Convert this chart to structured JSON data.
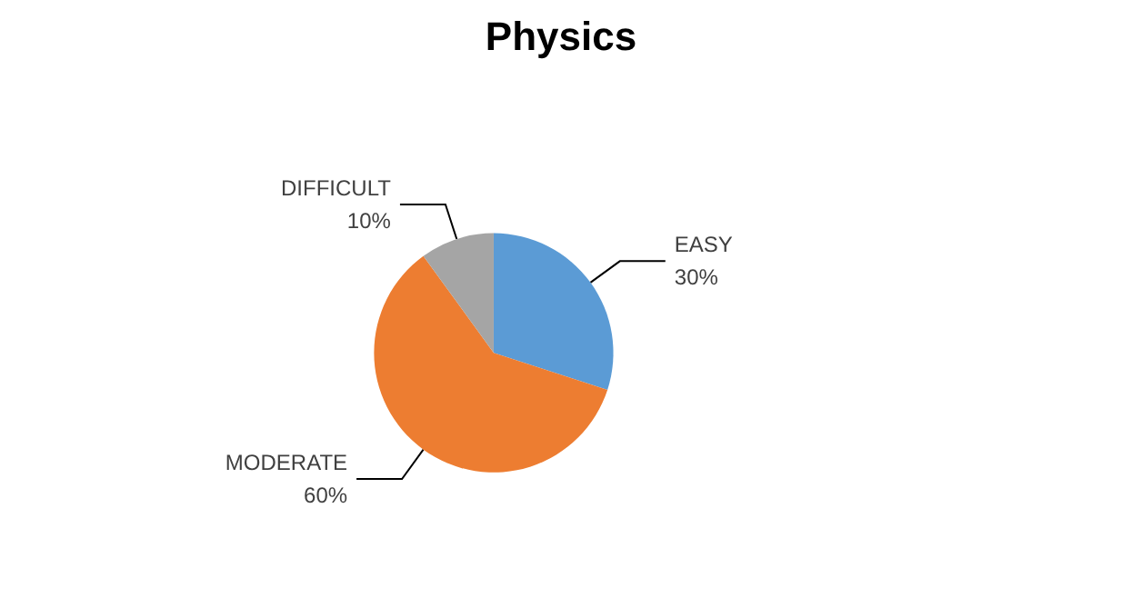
{
  "chart_data": {
    "type": "pie",
    "title": "Physics",
    "categories": [
      "EASY",
      "MODERATE",
      "DIFFICULT"
    ],
    "values": [
      30,
      60,
      10
    ],
    "value_labels": [
      "30%",
      "60%",
      "10%"
    ],
    "colors": [
      "#5b9bd5",
      "#ed7d31",
      "#a5a5a5"
    ]
  }
}
